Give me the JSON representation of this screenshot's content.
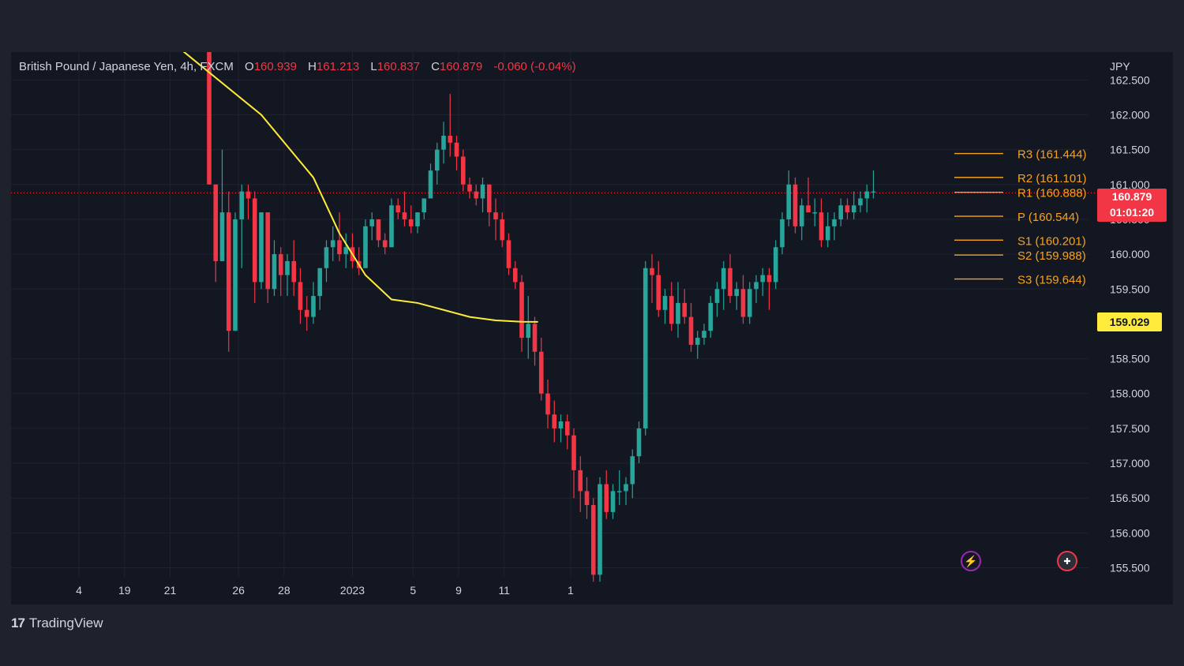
{
  "header": {
    "symbol": "British Pound / Japanese Yen, 4h, FXCM",
    "open_label": "O",
    "open": "160.939",
    "high_label": "H",
    "high": "161.213",
    "low_label": "L",
    "low": "160.837",
    "close_label": "C",
    "close": "160.879",
    "change": "-0.060 (-0.04%)"
  },
  "axis": {
    "currency": "JPY",
    "last_price": "160.879",
    "countdown": "01:01:20",
    "ma_price": "159.029"
  },
  "footer": {
    "logo_mark": "17",
    "logo_text": "TradingView"
  },
  "colors": {
    "background": "#131722",
    "outer": "#1e222d",
    "up": "#26a69a",
    "down": "#f23645",
    "ma": "#ffeb3b",
    "pivot": "#f7a21b",
    "text": "#d1d4dc"
  },
  "icons": {
    "alert": "lightning-icon",
    "country": "uk-flag-icon"
  },
  "chart_data": {
    "type": "candlestick",
    "ylim": [
      155.2,
      162.9
    ],
    "y_ticks": [
      "162.500",
      "162.000",
      "161.500",
      "161.000",
      "160.500",
      "160.000",
      "159.500",
      "158.500",
      "158.000",
      "157.500",
      "157.000",
      "156.500",
      "156.000",
      "155.500"
    ],
    "x_ticks": [
      {
        "label": "4",
        "i": -20
      },
      {
        "label": "19",
        "i": -13
      },
      {
        "label": "21",
        "i": -6
      },
      {
        "label": "26",
        "i": 4.5
      },
      {
        "label": "28",
        "i": 11.5
      },
      {
        "label": "2023",
        "i": 22
      },
      {
        "label": "5",
        "i": 31.3
      },
      {
        "label": "9",
        "i": 38.3
      },
      {
        "label": "11",
        "i": 45.3
      },
      {
        "label": "1",
        "i": 55.5
      }
    ],
    "last_price": 160.879,
    "ma_price": 159.029,
    "candles": [
      [
        162.9,
        162.9,
        161.0,
        161.0
      ],
      [
        161.0,
        161.0,
        159.6,
        159.9
      ],
      [
        159.9,
        161.5,
        159.9,
        160.6
      ],
      [
        160.6,
        160.9,
        158.6,
        158.9
      ],
      [
        158.9,
        160.6,
        158.9,
        160.5
      ],
      [
        160.5,
        161.0,
        159.8,
        160.9
      ],
      [
        160.9,
        161.0,
        160.5,
        160.8
      ],
      [
        160.8,
        160.9,
        159.3,
        159.6
      ],
      [
        159.6,
        160.6,
        159.5,
        160.6
      ],
      [
        160.6,
        160.6,
        159.3,
        159.5
      ],
      [
        159.5,
        160.2,
        159.4,
        160.0
      ],
      [
        160.0,
        160.1,
        159.4,
        159.7
      ],
      [
        159.7,
        160.0,
        159.4,
        159.9
      ],
      [
        159.9,
        160.2,
        159.4,
        159.6
      ],
      [
        159.6,
        159.8,
        159.0,
        159.2
      ],
      [
        159.2,
        159.4,
        158.9,
        159.1
      ],
      [
        159.1,
        159.6,
        159.0,
        159.4
      ],
      [
        159.4,
        159.8,
        159.2,
        159.8
      ],
      [
        159.8,
        160.2,
        159.6,
        160.1
      ],
      [
        160.1,
        160.4,
        159.9,
        160.2
      ],
      [
        160.2,
        160.6,
        159.9,
        160.0
      ],
      [
        160.0,
        160.3,
        159.8,
        160.1
      ],
      [
        160.1,
        160.3,
        159.8,
        159.9
      ],
      [
        159.9,
        160.1,
        159.7,
        159.8
      ],
      [
        159.8,
        160.5,
        159.8,
        160.4
      ],
      [
        160.4,
        160.6,
        160.2,
        160.5
      ],
      [
        160.5,
        160.5,
        160.1,
        160.2
      ],
      [
        160.2,
        160.3,
        160.0,
        160.1
      ],
      [
        160.1,
        160.8,
        160.1,
        160.7
      ],
      [
        160.7,
        160.8,
        160.5,
        160.6
      ],
      [
        160.6,
        160.9,
        160.4,
        160.5
      ],
      [
        160.5,
        160.7,
        160.3,
        160.4
      ],
      [
        160.4,
        160.6,
        160.3,
        160.6
      ],
      [
        160.6,
        160.8,
        160.5,
        160.8
      ],
      [
        160.8,
        161.3,
        160.8,
        161.2
      ],
      [
        161.2,
        161.6,
        161.0,
        161.5
      ],
      [
        161.5,
        161.9,
        161.3,
        161.7
      ],
      [
        161.7,
        162.3,
        161.4,
        161.6
      ],
      [
        161.6,
        161.7,
        161.2,
        161.4
      ],
      [
        161.4,
        161.5,
        160.9,
        161.0
      ],
      [
        161.0,
        161.1,
        160.8,
        160.9
      ],
      [
        160.9,
        161.0,
        160.7,
        160.8
      ],
      [
        160.8,
        161.1,
        160.6,
        161.0
      ],
      [
        161.0,
        161.0,
        160.4,
        160.6
      ],
      [
        160.6,
        160.8,
        160.2,
        160.5
      ],
      [
        160.5,
        160.6,
        160.1,
        160.2
      ],
      [
        160.2,
        160.3,
        159.7,
        159.8
      ],
      [
        159.8,
        159.9,
        159.5,
        159.6
      ],
      [
        159.6,
        159.7,
        158.6,
        158.8
      ],
      [
        158.8,
        159.4,
        158.5,
        159.0
      ],
      [
        159.0,
        159.1,
        158.4,
        158.6
      ],
      [
        158.6,
        158.8,
        157.9,
        158.0
      ],
      [
        158.0,
        158.2,
        157.5,
        157.7
      ],
      [
        157.7,
        157.9,
        157.3,
        157.5
      ],
      [
        157.5,
        157.7,
        157.3,
        157.6
      ],
      [
        157.6,
        157.7,
        157.2,
        157.4
      ],
      [
        157.4,
        157.5,
        156.5,
        156.9
      ],
      [
        156.9,
        157.1,
        156.3,
        156.6
      ],
      [
        156.6,
        156.8,
        156.2,
        156.4
      ],
      [
        156.4,
        156.5,
        155.3,
        155.4
      ],
      [
        155.4,
        156.8,
        155.3,
        156.7
      ],
      [
        156.7,
        156.9,
        156.2,
        156.3
      ],
      [
        156.3,
        156.7,
        156.2,
        156.6
      ],
      [
        156.6,
        156.9,
        156.4,
        156.6
      ],
      [
        156.6,
        156.8,
        156.4,
        156.7
      ],
      [
        156.7,
        157.2,
        156.5,
        157.1
      ],
      [
        157.1,
        157.6,
        157.0,
        157.5
      ],
      [
        157.5,
        159.9,
        157.4,
        159.8
      ],
      [
        159.8,
        160.0,
        159.3,
        159.7
      ],
      [
        159.7,
        159.9,
        159.1,
        159.2
      ],
      [
        159.2,
        159.5,
        159.0,
        159.4
      ],
      [
        159.4,
        159.6,
        158.9,
        159.0
      ],
      [
        159.0,
        159.6,
        158.8,
        159.3
      ],
      [
        159.3,
        159.5,
        159.0,
        159.1
      ],
      [
        159.1,
        159.3,
        158.6,
        158.7
      ],
      [
        158.7,
        158.9,
        158.5,
        158.8
      ],
      [
        158.8,
        159.0,
        158.7,
        158.9
      ],
      [
        158.9,
        159.4,
        158.8,
        159.3
      ],
      [
        159.3,
        159.6,
        159.1,
        159.5
      ],
      [
        159.5,
        159.9,
        159.2,
        159.8
      ],
      [
        159.8,
        160.0,
        159.3,
        159.4
      ],
      [
        159.4,
        159.6,
        159.2,
        159.5
      ],
      [
        159.5,
        159.7,
        159.0,
        159.1
      ],
      [
        159.1,
        159.6,
        159.0,
        159.5
      ],
      [
        159.5,
        159.7,
        159.3,
        159.6
      ],
      [
        159.6,
        159.8,
        159.4,
        159.7
      ],
      [
        159.7,
        159.8,
        159.2,
        159.6
      ],
      [
        159.6,
        160.2,
        159.5,
        160.1
      ],
      [
        160.1,
        160.6,
        160.0,
        160.5
      ],
      [
        160.5,
        161.2,
        160.4,
        161.0
      ],
      [
        161.0,
        161.1,
        160.3,
        160.4
      ],
      [
        160.4,
        160.8,
        160.2,
        160.7
      ],
      [
        160.7,
        161.1,
        160.6,
        160.6
      ],
      [
        160.6,
        160.8,
        160.4,
        160.6
      ],
      [
        160.6,
        160.8,
        160.1,
        160.2
      ],
      [
        160.2,
        160.6,
        160.1,
        160.4
      ],
      [
        160.4,
        160.6,
        160.2,
        160.5
      ],
      [
        160.5,
        160.8,
        160.4,
        160.7
      ],
      [
        160.7,
        160.8,
        160.5,
        160.6
      ],
      [
        160.6,
        160.9,
        160.5,
        160.7
      ],
      [
        160.7,
        160.9,
        160.6,
        160.8
      ],
      [
        160.8,
        161.0,
        160.6,
        160.9
      ],
      [
        160.9,
        161.2,
        160.8,
        160.9
      ]
    ],
    "moving_average": [
      [
        -17,
        163.9
      ],
      [
        8,
        162.0
      ],
      [
        16,
        161.1
      ],
      [
        20,
        160.3
      ],
      [
        24,
        159.7
      ],
      [
        28,
        159.35
      ],
      [
        32,
        159.3
      ],
      [
        36,
        159.2
      ],
      [
        40,
        159.1
      ],
      [
        44,
        159.05
      ],
      [
        48,
        159.03
      ],
      [
        50.5,
        159.029
      ]
    ],
    "pivots": [
      {
        "label": "R3 (161.444)",
        "value": 161.444
      },
      {
        "label": "R2 (161.101)",
        "value": 161.101
      },
      {
        "label": "R1 (160.888)",
        "value": 160.888
      },
      {
        "label": "P (160.544)",
        "value": 160.544
      },
      {
        "label": "S1 (160.201)",
        "value": 160.201
      },
      {
        "label": "S2 (159.988)",
        "value": 159.988
      },
      {
        "label": "S3 (159.644)",
        "value": 159.644
      }
    ]
  }
}
